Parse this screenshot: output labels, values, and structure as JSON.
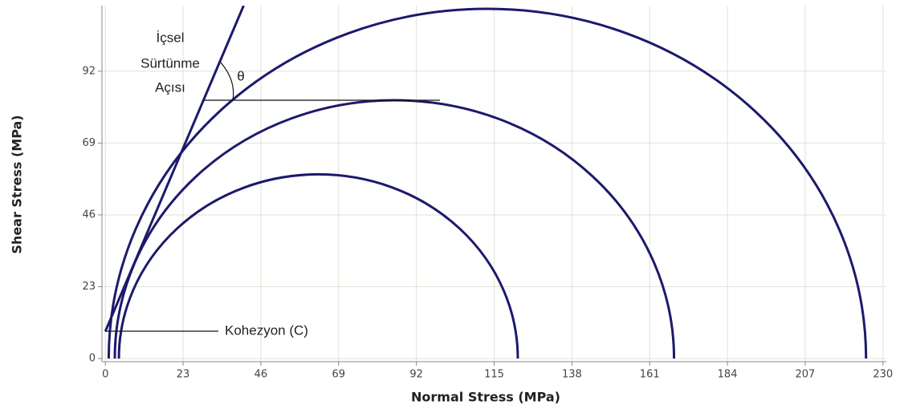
{
  "chart_data": {
    "type": "mohr",
    "x_label": "Normal Stress (MPa)",
    "y_label": "Shear Stress (MPa)",
    "xlim": [
      -1,
      231
    ],
    "ylim": [
      -1,
      113
    ],
    "xticks": [
      0,
      23,
      46,
      69,
      92,
      115,
      138,
      161,
      184,
      207,
      230
    ],
    "yticks": [
      0,
      23,
      46,
      69,
      92
    ],
    "grid": true,
    "color": "#1c1a6b",
    "circles": [
      {
        "center": 63,
        "radius": 59
      },
      {
        "center": 85.5,
        "radius": 82.7
      },
      {
        "center": 113,
        "radius": 112
      }
    ],
    "envelope": {
      "cohesion": 8.7,
      "slope": 2.55
    },
    "annotations": {
      "friction_angle": [
        "İçsel",
        "Sürtünme",
        "Açısı"
      ],
      "theta": "θ",
      "cohesion": "Kohezyon (C)"
    }
  }
}
